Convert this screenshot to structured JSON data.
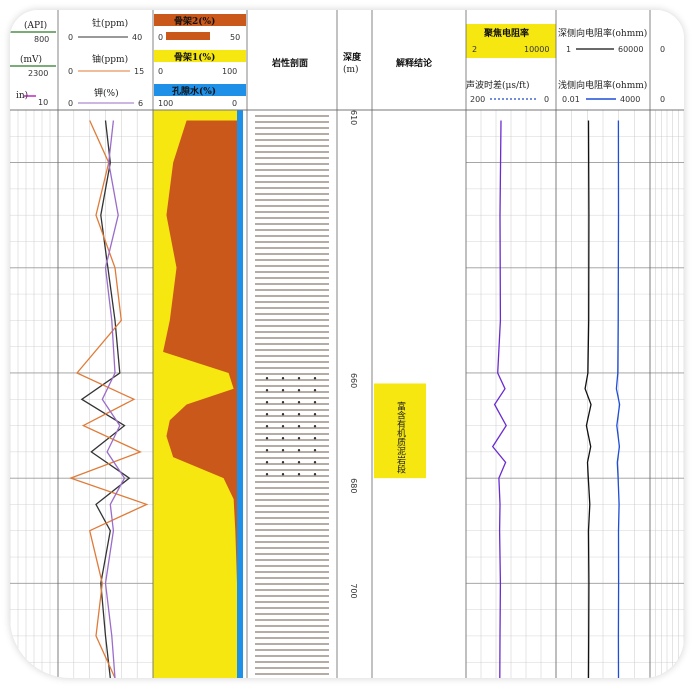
{
  "headers": {
    "track1": {
      "rows": [
        {
          "name": "(API)",
          "min": "",
          "max": "800",
          "color": "#2a7a2a"
        },
        {
          "name": "(mV)",
          "min": "",
          "max": "2300",
          "color": "#2a7a2a"
        },
        {
          "name": "in)",
          "min": "",
          "max": "10",
          "color": "#b000b0"
        }
      ]
    },
    "track2": {
      "rows": [
        {
          "name": "钍(ppm)",
          "min": "0",
          "max": "40",
          "color": "#333333"
        },
        {
          "name": "铀(ppm)",
          "min": "0",
          "max": "15",
          "color": "#e07b39"
        },
        {
          "name": "钾(%)",
          "min": "0",
          "max": "6",
          "color": "#9b6cc9"
        }
      ]
    },
    "track3": {
      "rows": [
        {
          "name": "骨架2(%)",
          "min": "0",
          "max": "50",
          "fill": "#c9581a"
        },
        {
          "name": "骨架1(%)",
          "min": "0",
          "max": "100",
          "fill": "#f6e711"
        },
        {
          "name": "孔隙水(%)",
          "min": "100",
          "max": "0",
          "fill": "#1e90e8"
        }
      ]
    },
    "lithology": "岩性剖面",
    "depth_title": "深度",
    "depth_unit": "(m)",
    "interpretation": "解释结论",
    "track6": {
      "rows": [
        {
          "name": "聚焦电阻率",
          "min": "2",
          "max": "10000"
        },
        {
          "name": "声波时差(μs/ft)",
          "min": "200",
          "max": "0"
        }
      ]
    },
    "track7": {
      "rows": [
        {
          "name": "深侧向电阻率(ohmm)",
          "min": "1",
          "max": "60000"
        },
        {
          "name": "浅侧向电阻率(ohmm)",
          "min": "0.01",
          "max": "4000"
        }
      ]
    },
    "track8": {
      "rows": [
        {
          "min": "0"
        },
        {
          "min": "0"
        }
      ]
    }
  },
  "interpretation_label": "富含有机质泥岩段",
  "colors": {
    "grid": "#c9c9c9",
    "grid_major": "#9a9a9a",
    "yellow": "#f6e711",
    "orange": "#c9581a",
    "blue": "#1e90e8",
    "purple": "#6a2bd1",
    "black": "#111111",
    "magenta": "#b000b0",
    "green": "#33cc33",
    "lith_line": "#8a7a70"
  },
  "chart_data": {
    "type": "line",
    "title": "",
    "depth_unit": "m",
    "depth_range": [
      610,
      718
    ],
    "depth_ticks": [
      610,
      660,
      680,
      700
    ],
    "interpretation_zone": {
      "top": 662,
      "bottom": 680,
      "label": "富含有机质泥岩段"
    },
    "series": [
      {
        "name": "钍",
        "track": "track2",
        "unit": "ppm",
        "range": [
          0,
          40
        ],
        "depth": [
          612,
          620,
          630,
          640,
          650,
          660,
          665,
          670,
          675,
          680,
          685,
          690,
          700,
          710,
          718
        ],
        "values": [
          20,
          22,
          18,
          21,
          24,
          26,
          10,
          28,
          14,
          30,
          16,
          22,
          18,
          20,
          22
        ]
      },
      {
        "name": "铀",
        "track": "track2",
        "unit": "ppm",
        "range": [
          0,
          15
        ],
        "depth": [
          612,
          620,
          630,
          640,
          650,
          660,
          665,
          670,
          675,
          680,
          685,
          690,
          700,
          710,
          718
        ],
        "values": [
          5,
          8,
          6,
          9,
          10,
          3,
          12,
          4,
          13,
          2,
          14,
          5,
          7,
          6,
          9
        ]
      },
      {
        "name": "钾",
        "track": "track2",
        "unit": "%",
        "range": [
          0,
          6
        ],
        "depth": [
          612,
          620,
          630,
          640,
          650,
          660,
          665,
          670,
          675,
          680,
          685,
          690,
          700,
          710,
          718
        ],
        "values": [
          3.5,
          3.2,
          3.8,
          3.0,
          3.4,
          3.6,
          2.8,
          3.9,
          3.1,
          4.2,
          3.3,
          3.5,
          3.0,
          3.4,
          3.6
        ]
      },
      {
        "name": "聚焦电阻率",
        "track": "track6",
        "range": [
          2,
          10000
        ],
        "depth": [
          612,
          630,
          650,
          660,
          663,
          666,
          670,
          674,
          677,
          680,
          685,
          690,
          700,
          710,
          718
        ],
        "values": [
          55,
          50,
          52,
          40,
          80,
          30,
          90,
          25,
          85,
          45,
          50,
          48,
          52,
          50,
          49
        ]
      },
      {
        "name": "深侧向电阻率",
        "track": "track7",
        "unit": "ohmm",
        "range": [
          1,
          60000
        ],
        "depth": [
          612,
          630,
          650,
          660,
          663,
          666,
          670,
          674,
          677,
          680,
          685,
          690,
          700,
          710,
          718
        ],
        "values": [
          45,
          47,
          46,
          42,
          30,
          60,
          35,
          58,
          40,
          44,
          52,
          45,
          47,
          46,
          45
        ]
      },
      {
        "name": "浅侧向电阻率",
        "track": "track7",
        "unit": "ohmm",
        "range": [
          0.01,
          4000
        ],
        "depth": [
          612,
          630,
          650,
          660,
          663,
          666,
          670,
          674,
          677,
          680,
          685,
          690,
          700,
          710,
          718
        ],
        "values": [
          52,
          53,
          51,
          48,
          40,
          62,
          42,
          60,
          45,
          50,
          58,
          53,
          54,
          52,
          53
        ]
      },
      {
        "name": "骨架2",
        "track": "track3",
        "unit": "%",
        "range": [
          0,
          50
        ],
        "depth": [
          612,
          620,
          630,
          640,
          650,
          656,
          660,
          663,
          666,
          669,
          672,
          676,
          680,
          684,
          690,
          700,
          718
        ],
        "values": [
          30,
          38,
          42,
          36,
          40,
          44,
          5,
          2,
          30,
          40,
          42,
          38,
          8,
          2,
          1,
          0,
          0
        ]
      }
    ]
  }
}
